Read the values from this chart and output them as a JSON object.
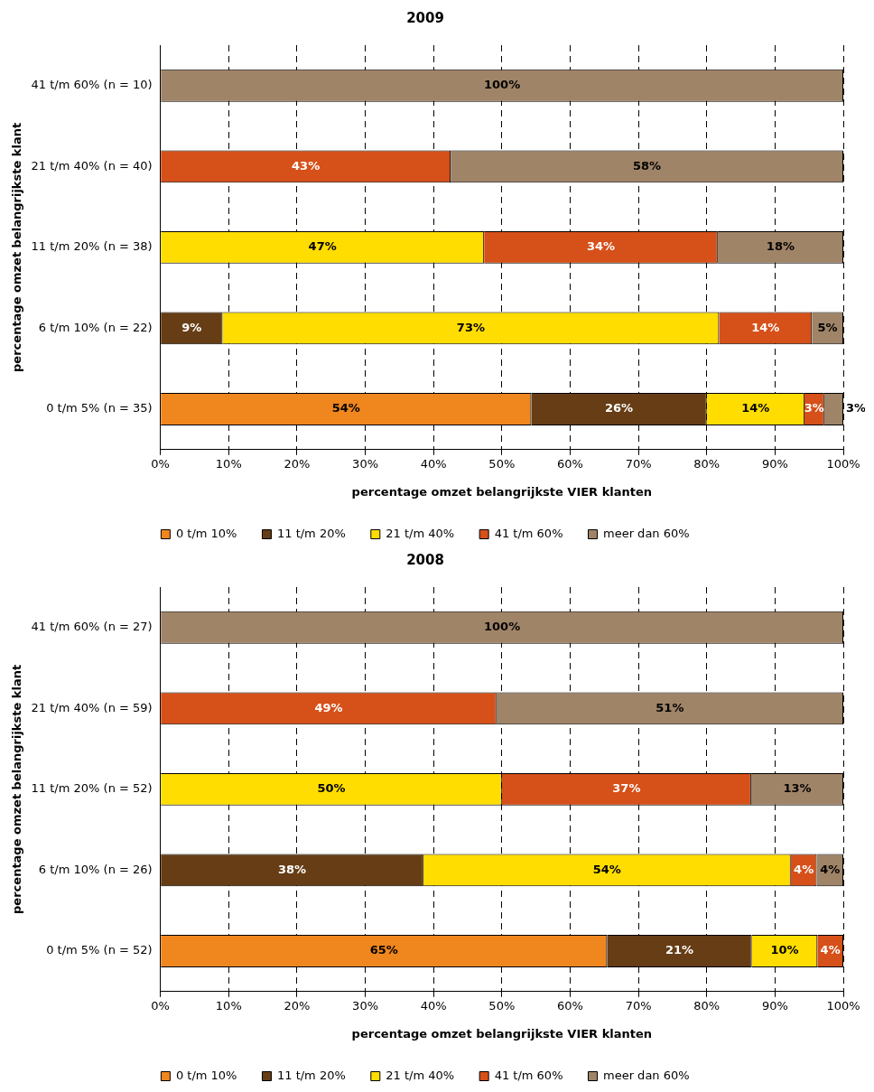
{
  "chart_data": [
    {
      "type": "bar",
      "orientation": "horizontal",
      "stacked": true,
      "title": "2009",
      "xlabel": "percentage omzet belangrijkste VIER klanten",
      "ylabel": "percentage omzet belangrijkste klant",
      "categories": [
        "41 t/m 60% (n = 10)",
        "21 t/m 40% (n = 40)",
        "11 t/m 20% (n = 38)",
        "6 t/m 10% (n = 22)",
        "0 t/m 5% (n = 35)"
      ],
      "series": [
        {
          "name": "0 t/m 10%",
          "color": "#f0861e",
          "values": [
            null,
            null,
            null,
            null,
            54.3
          ],
          "value_labels": [
            null,
            null,
            null,
            null,
            "54%"
          ]
        },
        {
          "name": "11 t/m 20%",
          "color": "#663d14",
          "values": [
            null,
            null,
            null,
            9.1,
            25.7
          ],
          "value_labels": [
            null,
            null,
            null,
            "9%",
            "26%"
          ]
        },
        {
          "name": "21 t/m 40%",
          "color": "#ffdd00",
          "values": [
            null,
            null,
            47.4,
            72.7,
            14.3
          ],
          "value_labels": [
            null,
            null,
            "47%",
            "73%",
            "14%"
          ]
        },
        {
          "name": "41 t/m 60%",
          "color": "#d65019",
          "values": [
            null,
            42.5,
            34.2,
            13.6,
            2.9
          ],
          "value_labels": [
            null,
            "43%",
            "34%",
            "14%",
            "3%"
          ]
        },
        {
          "name": "meer dan 60%",
          "color": "#a08468",
          "values": [
            100,
            57.5,
            18.4,
            4.6,
            2.8
          ],
          "value_labels": [
            "100%",
            "58%",
            "18%",
            "5%",
            "3%"
          ]
        }
      ],
      "xlim": [
        0,
        100
      ],
      "xticks": [
        {
          "value": 0,
          "label": "0%"
        },
        {
          "value": 10,
          "label": "10%"
        },
        {
          "value": 20,
          "label": "20%"
        },
        {
          "value": 30,
          "label": "30%"
        },
        {
          "value": 40,
          "label": "40%"
        },
        {
          "value": 50,
          "label": "50%"
        },
        {
          "value": 60,
          "label": "60%"
        },
        {
          "value": 70,
          "label": "70%"
        },
        {
          "value": 80,
          "label": "80%"
        },
        {
          "value": 90,
          "label": "90%"
        },
        {
          "value": 100,
          "label": "100%"
        }
      ],
      "grid": "x",
      "legend": "bottom"
    },
    {
      "type": "bar",
      "orientation": "horizontal",
      "stacked": true,
      "title": "2008",
      "xlabel": "percentage omzet belangrijkste VIER klanten",
      "ylabel": "percentage omzet belangrijkste klant",
      "categories": [
        "41 t/m 60% (n = 27)",
        "21 t/m 40% (n = 59)",
        "11 t/m 20% (n = 52)",
        "6 t/m 10% (n = 26)",
        "0 t/m 5% (n = 52)"
      ],
      "series": [
        {
          "name": "0 t/m 10%",
          "color": "#f0861e",
          "values": [
            null,
            null,
            null,
            null,
            65.4
          ],
          "value_labels": [
            null,
            null,
            null,
            null,
            "65%"
          ]
        },
        {
          "name": "11 t/m 20%",
          "color": "#663d14",
          "values": [
            null,
            null,
            null,
            38.5,
            21.2
          ],
          "value_labels": [
            null,
            null,
            null,
            "38%",
            "21%"
          ]
        },
        {
          "name": "21 t/m 40%",
          "color": "#ffdd00",
          "values": [
            null,
            null,
            50,
            53.8,
            9.6
          ],
          "value_labels": [
            null,
            null,
            "50%",
            "54%",
            "10%"
          ]
        },
        {
          "name": "41 t/m 60%",
          "color": "#d65019",
          "values": [
            null,
            49.2,
            36.5,
            3.8,
            3.8
          ],
          "value_labels": [
            null,
            "49%",
            "37%",
            "4%",
            "4%"
          ]
        },
        {
          "name": "meer dan 60%",
          "color": "#a08468",
          "values": [
            100,
            50.8,
            13.5,
            3.9,
            null
          ],
          "value_labels": [
            "100%",
            "51%",
            "13%",
            "4%",
            null
          ]
        }
      ],
      "xlim": [
        0,
        100
      ],
      "xticks": [
        {
          "value": 0,
          "label": "0%"
        },
        {
          "value": 10,
          "label": "10%"
        },
        {
          "value": 20,
          "label": "20%"
        },
        {
          "value": 30,
          "label": "30%"
        },
        {
          "value": 40,
          "label": "40%"
        },
        {
          "value": 50,
          "label": "50%"
        },
        {
          "value": 60,
          "label": "60%"
        },
        {
          "value": 70,
          "label": "70%"
        },
        {
          "value": 80,
          "label": "80%"
        },
        {
          "value": 90,
          "label": "90%"
        },
        {
          "value": 100,
          "label": "100%"
        }
      ],
      "grid": "x",
      "legend": "bottom"
    }
  ]
}
